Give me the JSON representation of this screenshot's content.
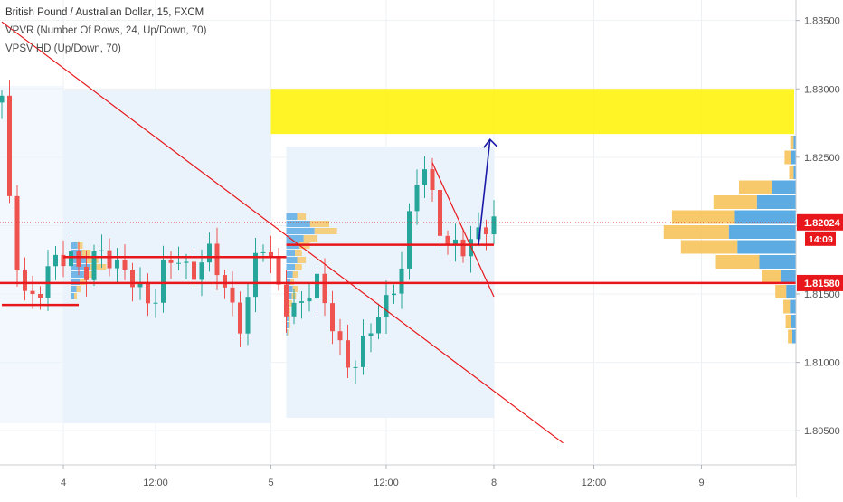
{
  "legend": {
    "symbol": "British Pound / Australian Dollar, 15, FXCM",
    "indicator1": "VPVR (Number Of Rows, 24, Up/Down, 70)",
    "indicator2": "VPSV HD (Up/Down, 70)"
  },
  "colors": {
    "up": "#26a69a",
    "down": "#ef5350",
    "vol_up": "#4aa3e0",
    "vol_down": "#f7c35a",
    "level": "#e8171b",
    "zone": "#fff200",
    "arrow": "#1a1aa8",
    "session_bg": "#eaf3fb",
    "grid": "#eef1f4"
  },
  "chart_data": {
    "type": "candlestick",
    "symbol": "GBPAUD",
    "timeframe": "15",
    "ylim": [
      1.8025,
      1.8365
    ],
    "y_ticks": [
      "1.83500",
      "1.83000",
      "1.82500",
      "1.82000",
      "1.81500",
      "1.81000",
      "1.80500"
    ],
    "x_ticks": [
      "4",
      "12:00",
      "5",
      "12:00",
      "8",
      "12:00",
      "9"
    ],
    "last_price_label": "1.82024",
    "countdown_label": "14:09",
    "level_label": "1.81580",
    "path": [
      1.829,
      1.82,
      1.8165,
      1.8148,
      1.8152,
      1.8163,
      1.817,
      1.8175,
      1.8179,
      1.8168,
      1.8175,
      1.818,
      1.817,
      1.8165,
      1.8172,
      1.816,
      1.815,
      1.814,
      1.8162,
      1.8175,
      1.8177,
      1.8168,
      1.8172,
      1.818,
      1.8166,
      1.815,
      1.8137,
      1.813,
      1.817,
      1.8188,
      1.817,
      1.815,
      1.814,
      1.8145,
      1.815,
      1.816,
      1.814,
      1.8125,
      1.8108,
      1.81,
      1.811,
      1.8118,
      1.813,
      1.814,
      1.816,
      1.8182,
      1.823,
      1.8245,
      1.8218,
      1.8196,
      1.8184,
      1.8192,
      1.8186,
      1.819,
      1.8195,
      1.82
    ],
    "levels": [
      1.8186,
      1.8177,
      1.8158,
      1.8142
    ],
    "trendlines": [
      {
        "from": [
          0,
          1.8349
        ],
        "to": [
          73,
          1.8041
        ]
      },
      {
        "from": [
          56,
          1.8246
        ],
        "to": [
          64,
          1.8148
        ]
      }
    ],
    "zone": {
      "from_bar": 35,
      "to_bar": 96,
      "y_top": 1.83,
      "y_bottom": 1.8267
    },
    "projection": {
      "from": [
        62,
        1.8186
      ],
      "to": [
        63.5,
        1.8263
      ]
    },
    "vpvr_profile": [
      {
        "up": 2,
        "down": 3
      },
      {
        "up": 4,
        "down": 6
      },
      {
        "up": 2,
        "down": 4
      },
      {
        "up": 20,
        "down": 30
      },
      {
        "up": 32,
        "down": 40
      },
      {
        "up": 50,
        "down": 58
      },
      {
        "up": 55,
        "down": 60
      },
      {
        "up": 48,
        "down": 52
      },
      {
        "up": 30,
        "down": 40
      },
      {
        "up": 12,
        "down": 18
      },
      {
        "up": 8,
        "down": 10
      },
      {
        "up": 5,
        "down": 6
      },
      {
        "up": 4,
        "down": 5
      },
      {
        "up": 3,
        "down": 4
      }
    ]
  }
}
